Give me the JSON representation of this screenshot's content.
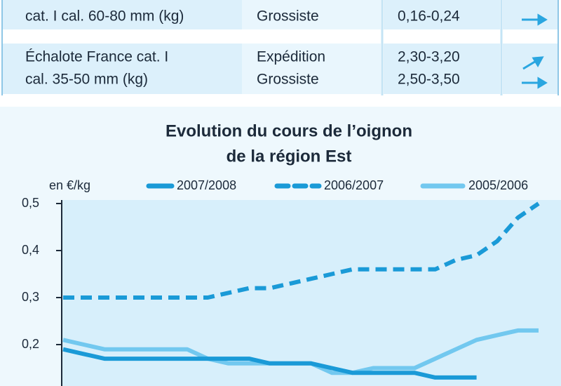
{
  "table": {
    "rows": [
      {
        "product": [
          "cat. I cal. 60-80 mm (kg)"
        ],
        "stages": [
          "Grossiste"
        ],
        "prices": [
          "0,16-0,24"
        ]
      },
      {
        "product": [
          "Échalote France cat. I",
          "cal. 35-50 mm (kg)"
        ],
        "stages": [
          "Expédition",
          "Grossiste"
        ],
        "prices": [
          "2,30-3,20",
          "2,50-3,50"
        ]
      }
    ]
  },
  "chart_data": {
    "type": "line",
    "title": [
      "Evolution du cours de l’oignon",
      "de la région Est"
    ],
    "y_label": "en €/kg",
    "categories": [
      null,
      null,
      null,
      null,
      null,
      null,
      null,
      null,
      null,
      null,
      null,
      null,
      null,
      null,
      null,
      null,
      null,
      null,
      null,
      null,
      null,
      null,
      null,
      null
    ],
    "ylim": [
      0.11,
      0.5
    ],
    "yticks": [
      {
        "value": 0.2,
        "label": "0,2"
      },
      {
        "value": 0.3,
        "label": "0,3"
      },
      {
        "value": 0.4,
        "label": "0,4"
      },
      {
        "value": 0.5,
        "label": "0,5"
      }
    ],
    "grid": false,
    "series": [
      {
        "name": "2007/2008",
        "color": "#1a9ad7",
        "style": "solid",
        "values": [
          0.19,
          0.18,
          0.17,
          0.17,
          0.17,
          0.17,
          0.17,
          0.17,
          0.17,
          0.17,
          0.16,
          0.16,
          0.16,
          0.15,
          0.14,
          0.14,
          0.14,
          0.14,
          0.13,
          0.13,
          0.13,
          null,
          null,
          null
        ]
      },
      {
        "name": "2006/2007",
        "color": "#1a9ad7",
        "style": "dashed",
        "values": [
          0.3,
          0.3,
          0.3,
          0.3,
          0.3,
          0.3,
          0.3,
          0.3,
          0.31,
          0.32,
          0.32,
          0.33,
          0.34,
          0.35,
          0.36,
          0.36,
          0.36,
          0.36,
          0.36,
          0.38,
          0.39,
          0.42,
          0.47,
          0.5
        ]
      },
      {
        "name": "2005/2006",
        "color": "#72c8ef",
        "style": "solid",
        "values": [
          0.21,
          0.2,
          0.19,
          0.19,
          0.19,
          0.19,
          0.19,
          0.17,
          0.16,
          0.16,
          0.16,
          0.16,
          0.16,
          0.14,
          0.14,
          0.15,
          0.15,
          0.15,
          0.17,
          0.19,
          0.21,
          0.22,
          0.23,
          0.23
        ]
      }
    ]
  }
}
